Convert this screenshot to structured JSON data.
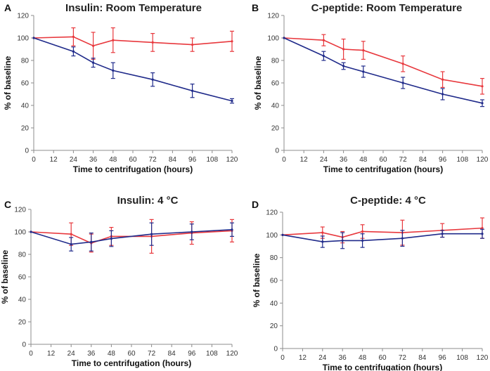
{
  "colors": {
    "series_a": "#e8383d",
    "series_b": "#1f2a8a",
    "axis": "#8c8c8c"
  },
  "chart_data": [
    {
      "panel_letter": "A",
      "type": "line",
      "title": "Insulin: Room Temperature",
      "xlabel": "Time to centrifugation (hours)",
      "ylabel": "% of baseline",
      "xlim": [
        0,
        120
      ],
      "ylim": [
        0,
        120
      ],
      "xticks": [
        "0",
        "12",
        "24",
        "36",
        "48",
        "60",
        "72",
        "84",
        "96",
        "108",
        "120"
      ],
      "yticks": [
        "0",
        "20",
        "40",
        "60",
        "80",
        "100",
        "120"
      ],
      "grid": false,
      "series": [
        {
          "color": "#e8383d",
          "x": [
            0,
            24,
            36,
            48,
            72,
            96,
            120
          ],
          "y": [
            100,
            101,
            93,
            98,
            96,
            94,
            97
          ],
          "err": [
            0,
            8,
            12,
            11,
            8,
            6,
            9
          ]
        },
        {
          "color": "#1f2a8a",
          "x": [
            0,
            24,
            36,
            48,
            72,
            96,
            120
          ],
          "y": [
            100,
            88,
            78,
            71,
            63,
            53,
            44
          ],
          "err": [
            0,
            4,
            4,
            7,
            6,
            6,
            2
          ]
        }
      ]
    },
    {
      "panel_letter": "B",
      "type": "line",
      "title": "C-peptide: Room Temperature",
      "xlabel": "Time to centrifugation (hours)",
      "ylabel": "% of baseline",
      "xlim": [
        0,
        120
      ],
      "ylim": [
        0,
        120
      ],
      "xticks": [
        "0",
        "12",
        "24",
        "36",
        "48",
        "60",
        "72",
        "84",
        "96",
        "108",
        "120"
      ],
      "yticks": [
        "0",
        "20",
        "40",
        "60",
        "80",
        "100",
        "120"
      ],
      "grid": false,
      "series": [
        {
          "color": "#e8383d",
          "x": [
            0,
            24,
            36,
            48,
            72,
            96,
            120
          ],
          "y": [
            100,
            98,
            90,
            89,
            77,
            63,
            57
          ],
          "err": [
            0,
            5,
            9,
            8,
            7,
            7,
            7
          ]
        },
        {
          "color": "#1f2a8a",
          "x": [
            0,
            24,
            36,
            48,
            72,
            96,
            120
          ],
          "y": [
            100,
            84,
            75,
            70,
            60,
            50,
            42
          ],
          "err": [
            0,
            4,
            3,
            5,
            5,
            5,
            3
          ]
        }
      ]
    },
    {
      "panel_letter": "C",
      "type": "line",
      "title": "Insulin: 4 °C",
      "xlabel": "Time to centrifugation (hours)",
      "ylabel": "% of baseline",
      "xlim": [
        0,
        120
      ],
      "ylim": [
        0,
        120
      ],
      "xticks": [
        "0",
        "12",
        "24",
        "36",
        "48",
        "60",
        "72",
        "84",
        "96",
        "108",
        "120"
      ],
      "yticks": [
        "0",
        "20",
        "40",
        "60",
        "80",
        "100",
        "120"
      ],
      "grid": false,
      "series": [
        {
          "color": "#e8383d",
          "x": [
            0,
            24,
            36,
            48,
            72,
            96,
            120
          ],
          "y": [
            100,
            98,
            90,
            96,
            96,
            99,
            101
          ],
          "err": [
            0,
            10,
            8,
            8,
            15,
            10,
            10
          ]
        },
        {
          "color": "#1f2a8a",
          "x": [
            0,
            24,
            36,
            48,
            72,
            96,
            120
          ],
          "y": [
            100,
            89,
            91,
            94,
            98,
            100,
            102
          ],
          "err": [
            0,
            6,
            8,
            7,
            10,
            7,
            6
          ]
        }
      ]
    },
    {
      "panel_letter": "D",
      "type": "line",
      "title": "C-peptide: 4 °C",
      "xlabel": "Time to centrifugation (hours)",
      "ylabel": "% of baseline",
      "xlim": [
        0,
        120
      ],
      "ylim": [
        0,
        120
      ],
      "xticks": [
        "0",
        "12",
        "24",
        "36",
        "48",
        "60",
        "72",
        "84",
        "96",
        "108",
        "120"
      ],
      "yticks": [
        "0",
        "20",
        "40",
        "60",
        "80",
        "100",
        "120"
      ],
      "grid": false,
      "series": [
        {
          "color": "#e8383d",
          "x": [
            0,
            24,
            36,
            48,
            72,
            96,
            120
          ],
          "y": [
            100,
            102,
            98,
            103,
            102,
            104,
            106
          ],
          "err": [
            0,
            5,
            5,
            6,
            11,
            6,
            9
          ]
        },
        {
          "color": "#1f2a8a",
          "x": [
            0,
            24,
            36,
            48,
            72,
            96,
            120
          ],
          "y": [
            100,
            94,
            95,
            95,
            97,
            101,
            101
          ],
          "err": [
            0,
            5,
            7,
            6,
            7,
            3,
            4
          ]
        }
      ]
    }
  ]
}
